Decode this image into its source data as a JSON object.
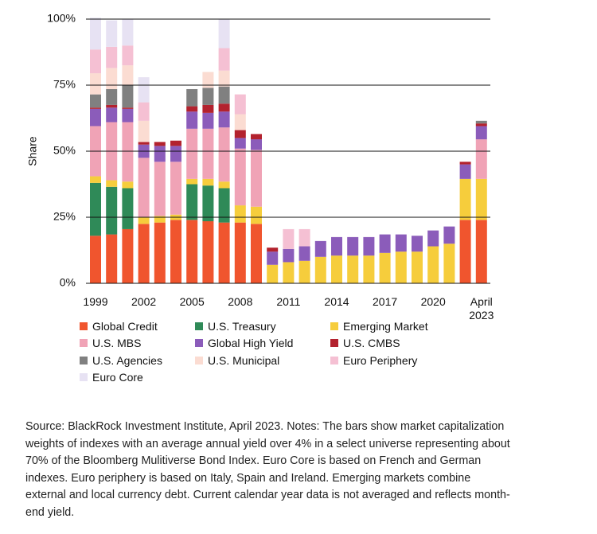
{
  "chart_data": {
    "type": "stacked_bar",
    "y_label": "Share",
    "categories": [
      "1999",
      null,
      null,
      "2002",
      null,
      null,
      "2005",
      null,
      null,
      "2008",
      null,
      null,
      "2011",
      null,
      null,
      "2014",
      null,
      null,
      "2017",
      null,
      null,
      "2020",
      null,
      null,
      "April 2023"
    ],
    "ylim": [
      0,
      100
    ],
    "yticks": [
      {
        "value": 0,
        "label": "0%"
      },
      {
        "value": 25,
        "label": "25%"
      },
      {
        "value": 50,
        "label": "50%"
      },
      {
        "value": 75,
        "label": "75%"
      },
      {
        "value": 100,
        "label": "100%"
      }
    ],
    "grid": true,
    "series": [
      {
        "name": "Global Credit",
        "color": "#f0552e",
        "values": [
          18,
          18.5,
          20.5,
          22.5,
          23,
          24,
          24,
          23.5,
          23,
          23,
          22.5,
          0,
          0,
          0,
          0,
          0,
          0,
          0,
          0,
          0,
          0,
          0,
          0,
          24,
          24
        ]
      },
      {
        "name": "U.S. Treasury",
        "color": "#2f8a58",
        "values": [
          20,
          18,
          15.5,
          0,
          0,
          0,
          13.5,
          13.5,
          13,
          0,
          0,
          0,
          0,
          0,
          0,
          0,
          0,
          0,
          0,
          0,
          0,
          0,
          0,
          0,
          0
        ]
      },
      {
        "name": "Emerging Market",
        "color": "#f6cd3c",
        "values": [
          2.5,
          2.5,
          2.5,
          2.5,
          2.5,
          2,
          2,
          2.5,
          2.5,
          6.5,
          6.5,
          7,
          8,
          8.5,
          10,
          10.5,
          10.5,
          10.5,
          11.5,
          12,
          12,
          14,
          15,
          15.5,
          15.5
        ]
      },
      {
        "name": "U.S. MBS",
        "color": "#f0a3b6",
        "values": [
          19,
          22,
          22.5,
          22.5,
          20.5,
          20,
          19,
          19,
          20.5,
          21.5,
          21.5,
          0,
          0,
          0,
          0,
          0,
          0,
          0,
          0,
          0,
          0,
          0,
          0,
          0,
          15
        ]
      },
      {
        "name": "Global High Yield",
        "color": "#8b5cba",
        "values": [
          6.5,
          5.5,
          5,
          5,
          6,
          6,
          6.5,
          6,
          6,
          4,
          4,
          5,
          5,
          5.5,
          6,
          7,
          7,
          7,
          7,
          6.5,
          6,
          6,
          6.5,
          5.5,
          5
        ]
      },
      {
        "name": "U.S. CMBS",
        "color": "#b3222e",
        "values": [
          0.5,
          1,
          0.5,
          1,
          1.5,
          2,
          2,
          3,
          3,
          3,
          2,
          1.5,
          0,
          0,
          0,
          0,
          0,
          0,
          0,
          0,
          0,
          0,
          0,
          1,
          1
        ]
      },
      {
        "name": "U.S. Agencies",
        "color": "#808080",
        "values": [
          5,
          6,
          8.5,
          0,
          0,
          0,
          6.5,
          6.5,
          6.5,
          0,
          0,
          0,
          0,
          0,
          0,
          0,
          0,
          0,
          0,
          0,
          0,
          0,
          0,
          0,
          1
        ]
      },
      {
        "name": "U.S. Municipal",
        "color": "#fbdcd2",
        "values": [
          8,
          8,
          7.5,
          8,
          0,
          0,
          0,
          6,
          6,
          6,
          0,
          0,
          0,
          0,
          0,
          0,
          0,
          0,
          0,
          0,
          0,
          0,
          0,
          0,
          0
        ]
      },
      {
        "name": "Euro Periphery",
        "color": "#f5c0d3",
        "values": [
          9,
          8,
          7.5,
          7,
          0,
          0,
          0,
          0,
          8.5,
          7.5,
          0,
          0,
          7.5,
          6.5,
          0,
          0,
          0,
          0,
          0,
          0,
          0,
          0,
          0,
          0,
          0
        ]
      },
      {
        "name": "Euro Core",
        "color": "#e7e2f3",
        "values": [
          12,
          10,
          10,
          9.5,
          0,
          0,
          0,
          0,
          11,
          0,
          0,
          0,
          0,
          0,
          0,
          0,
          0,
          0,
          0,
          0,
          0,
          0,
          0,
          0,
          0
        ]
      }
    ]
  },
  "notes": [
    "Source: BlackRock Investment Institute, April 2023. Notes: The bars show market capitalization",
    "weights of indexes with an average annual yield over 4% in a select universe representing about",
    "70% of the Bloomberg Mulitiverse Bond Index. Euro Core is based on French and German",
    "indexes. Euro periphery is based on Italy, Spain and Ireland. Emerging markets combine",
    "external and local currency debt. Current calendar year data is not averaged and reflects month-",
    "end yield."
  ]
}
